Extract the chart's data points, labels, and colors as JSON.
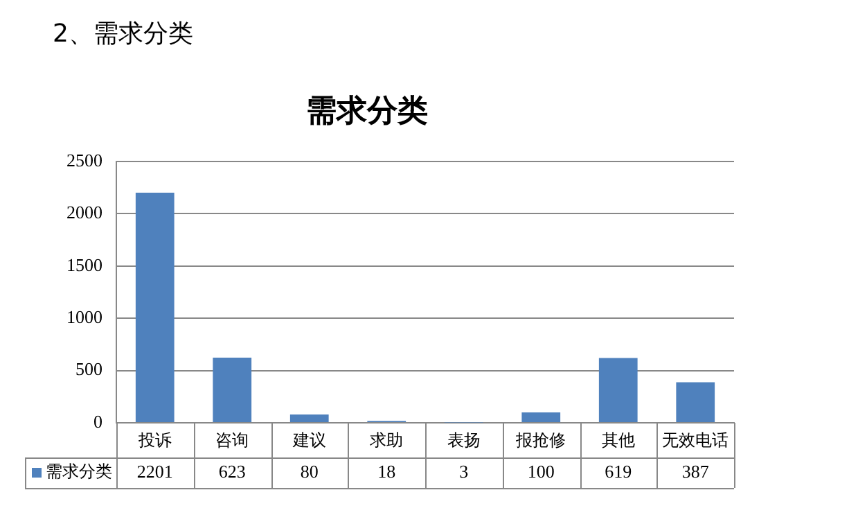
{
  "chart_data": {
    "type": "bar",
    "title": "需求分类",
    "annotations": [
      "2、需求分类"
    ],
    "categories": [
      "投诉",
      "咨询",
      "建议",
      "求助",
      "表扬",
      "报抢修",
      "其他",
      "无效电话"
    ],
    "series": [
      {
        "name": "需求分类",
        "color": "#4f81bd",
        "values": [
          2201,
          623,
          80,
          18,
          3,
          100,
          619,
          387
        ]
      }
    ],
    "ylim": [
      0,
      2500
    ],
    "yticks": [
      0,
      500,
      1000,
      1500,
      2000,
      2500
    ],
    "grid": "y",
    "data_labels": true,
    "legend": "bottom"
  }
}
